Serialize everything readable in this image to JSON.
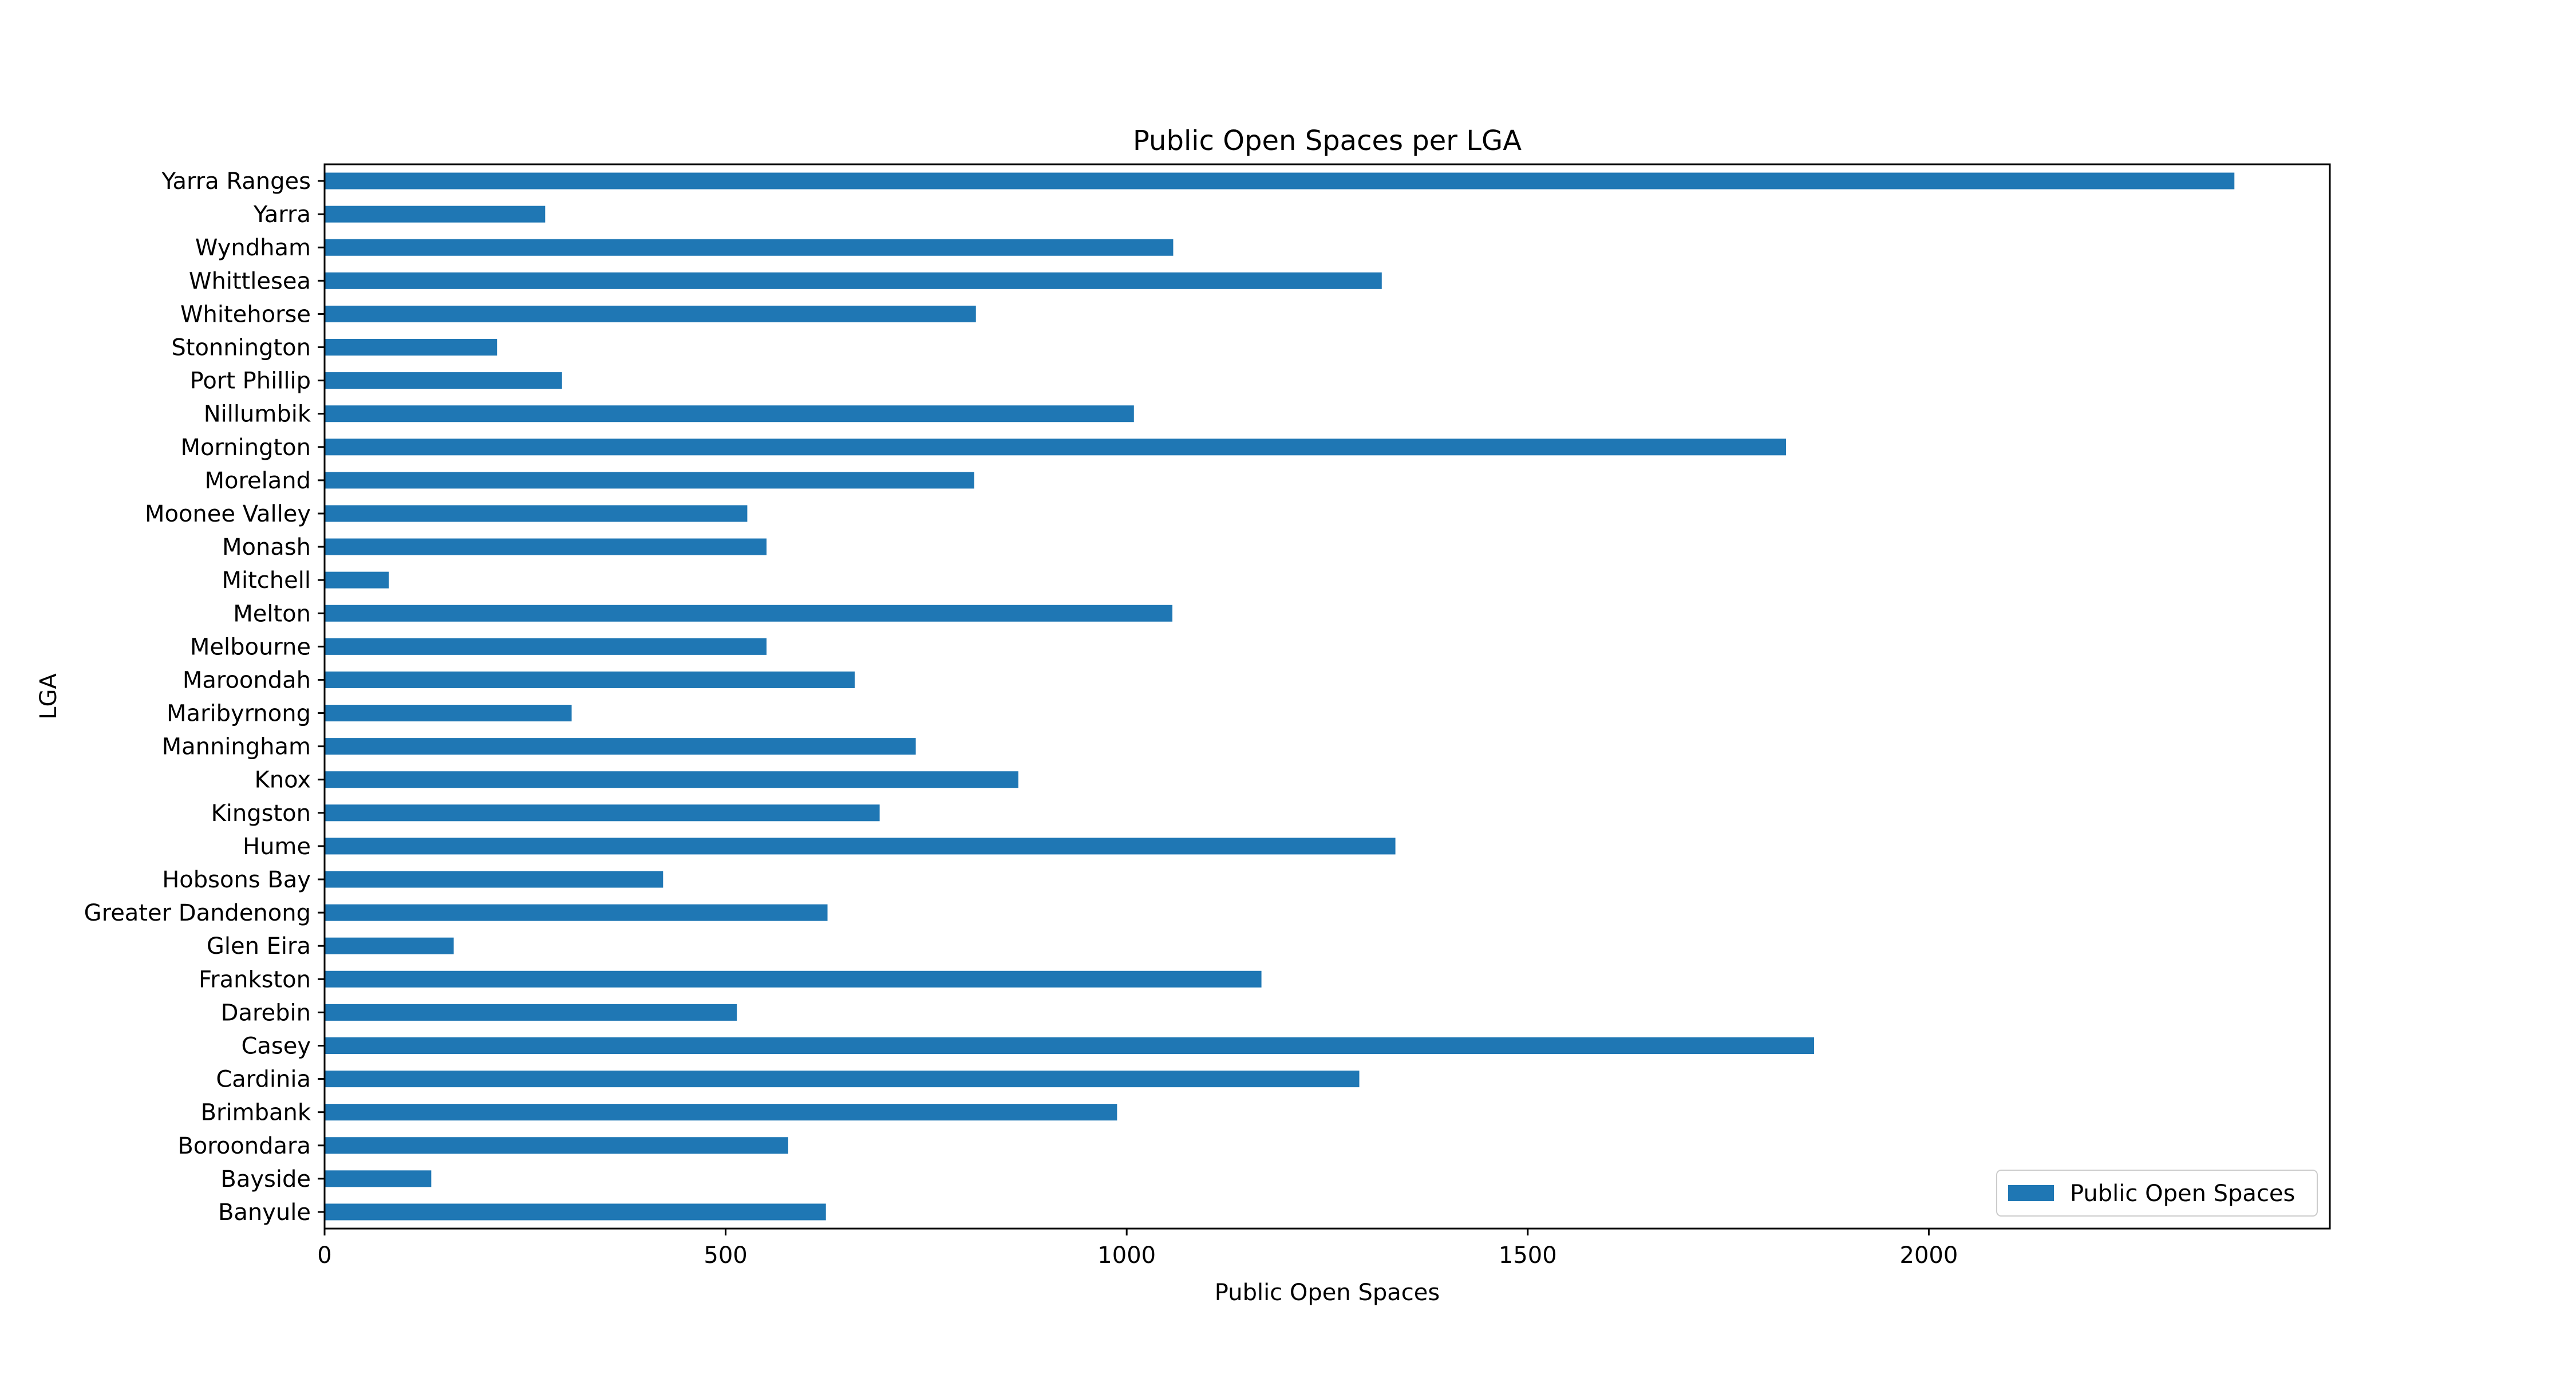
{
  "chart_data": {
    "type": "bar",
    "orientation": "horizontal",
    "title": "Public Open Spaces per LGA",
    "xlabel": "Public Open Spaces",
    "ylabel": "LGA",
    "xlim": [
      0,
      2500
    ],
    "xticks": [
      0,
      500,
      1000,
      1500,
      2000
    ],
    "grid": false,
    "legend_position": "lower-right",
    "categories": [
      "Banyule",
      "Bayside",
      "Boroondara",
      "Brimbank",
      "Cardinia",
      "Casey",
      "Darebin",
      "Frankston",
      "Glen Eira",
      "Greater Dandenong",
      "Hobsons Bay",
      "Hume",
      "Kingston",
      "Knox",
      "Manningham",
      "Maribyrnong",
      "Maroondah",
      "Melbourne",
      "Melton",
      "Mitchell",
      "Monash",
      "Moonee Valley",
      "Moreland",
      "Mornington",
      "Nillumbik",
      "Port Phillip",
      "Stonnington",
      "Whitehorse",
      "Whittlesea",
      "Wyndham",
      "Yarra",
      "Yarra Ranges"
    ],
    "series": [
      {
        "name": "Public Open Spaces",
        "color": "#1f77b4",
        "values": [
          625,
          133,
          578,
          988,
          1290,
          1857,
          514,
          1168,
          161,
          627,
          422,
          1335,
          692,
          865,
          737,
          308,
          661,
          551,
          1057,
          80,
          551,
          527,
          810,
          1822,
          1009,
          296,
          215,
          812,
          1318,
          1058,
          275,
          2381
        ]
      }
    ]
  }
}
